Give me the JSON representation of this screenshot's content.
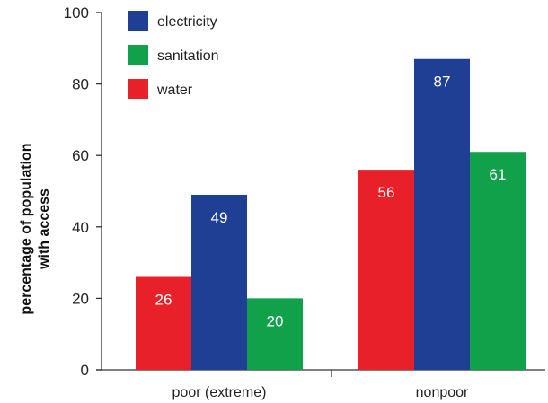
{
  "chart_data": {
    "type": "bar",
    "categories": [
      "poor (extreme)",
      "nonpoor"
    ],
    "series": [
      {
        "name": "water",
        "color": "#e8202a",
        "values": [
          26,
          56
        ]
      },
      {
        "name": "electricity",
        "color": "#1f3f95",
        "values": [
          49,
          87
        ]
      },
      {
        "name": "sanitation",
        "color": "#12a14b",
        "values": [
          20,
          61
        ]
      }
    ],
    "legend_order": [
      "electricity",
      "sanitation",
      "water"
    ],
    "ylabel_lines": [
      "percentage of population",
      "with access"
    ],
    "yticks": [
      0,
      20,
      40,
      60,
      80,
      100
    ],
    "ylim": [
      0,
      100
    ],
    "legend_position": "top-left",
    "grid": false,
    "data_labels": true
  }
}
